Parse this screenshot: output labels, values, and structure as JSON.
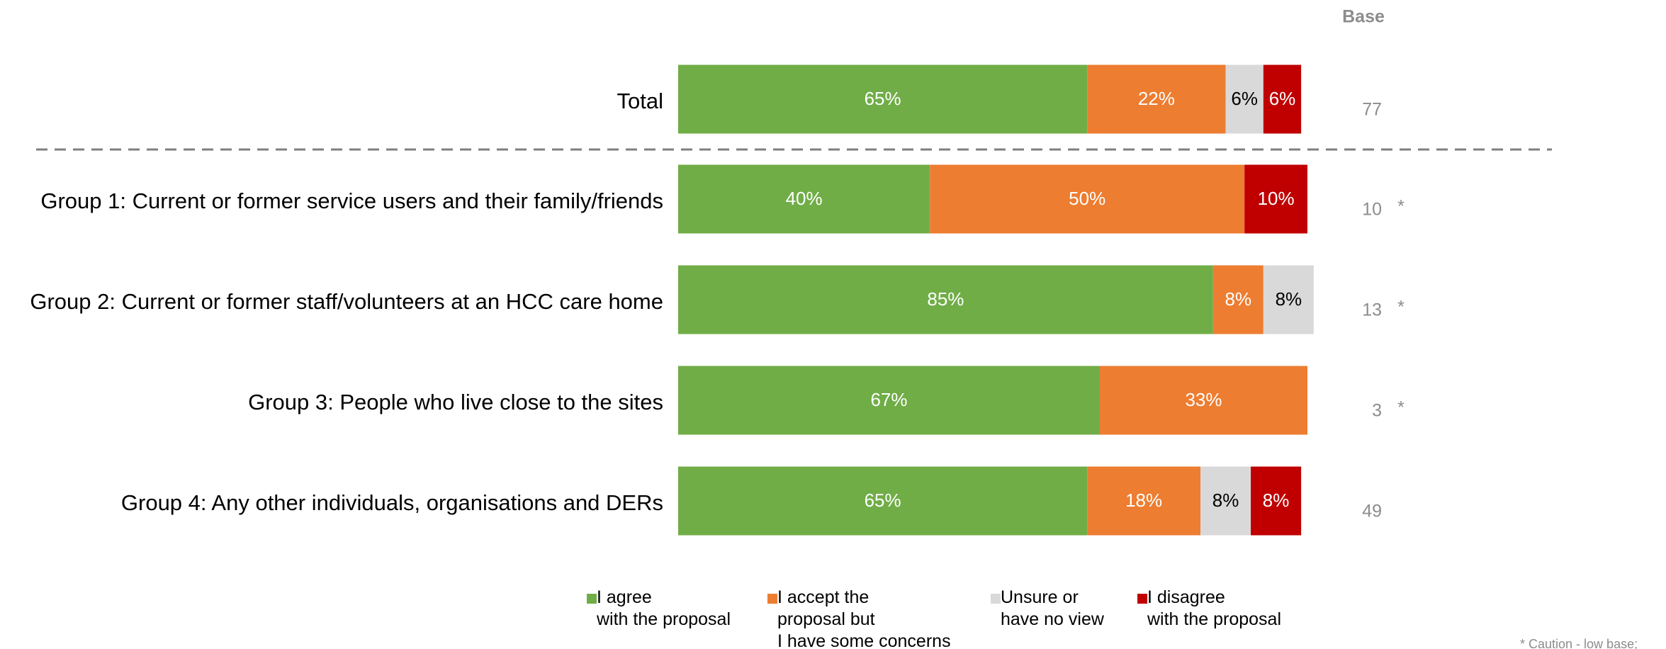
{
  "chart_data": {
    "type": "stacked_bar_horizontal",
    "categories": [
      "Total",
      "Group 1: Current or former service users and their family/friends",
      "Group 2: Current or former staff/volunteers at an HCC care home",
      "Group 3: People who live close to the sites",
      "Group 4: Any other individuals, organisations and DERs"
    ],
    "series": [
      {
        "name": "I agree\nwith the proposal",
        "color": "#70ad47",
        "label_color": "#ffffff",
        "values": [
          65,
          40,
          85,
          67,
          65
        ],
        "value_labels": [
          "65%",
          "40%",
          "85%",
          "67%",
          "65%"
        ]
      },
      {
        "name": "I accept the\nproposal but\nI have some concerns",
        "color": "#ed7d31",
        "label_color": "#ffffff",
        "values": [
          22,
          50,
          8,
          33,
          18
        ],
        "value_labels": [
          "22%",
          "50%",
          "8%",
          "33%",
          "18%"
        ]
      },
      {
        "name": "Unsure or\nhave no view",
        "color": "#d9d9d9",
        "label_color": "#000000",
        "values": [
          6,
          null,
          8,
          null,
          8
        ],
        "value_labels": [
          "6%",
          null,
          "8%",
          null,
          "8%"
        ]
      },
      {
        "name": "I disagree\nwith the proposal",
        "color": "#c00000",
        "label_color": "#ffffff",
        "values": [
          6,
          10,
          null,
          null,
          8
        ],
        "value_labels": [
          "6%",
          "10%",
          null,
          null,
          "8%"
        ]
      }
    ],
    "xlim": [
      0,
      100
    ],
    "base": {
      "label": "Base",
      "values": [
        77,
        10,
        13,
        3,
        49
      ],
      "flags": [
        null,
        "*",
        "*",
        "*",
        null
      ]
    },
    "footnote": "* Caution - low base;"
  }
}
